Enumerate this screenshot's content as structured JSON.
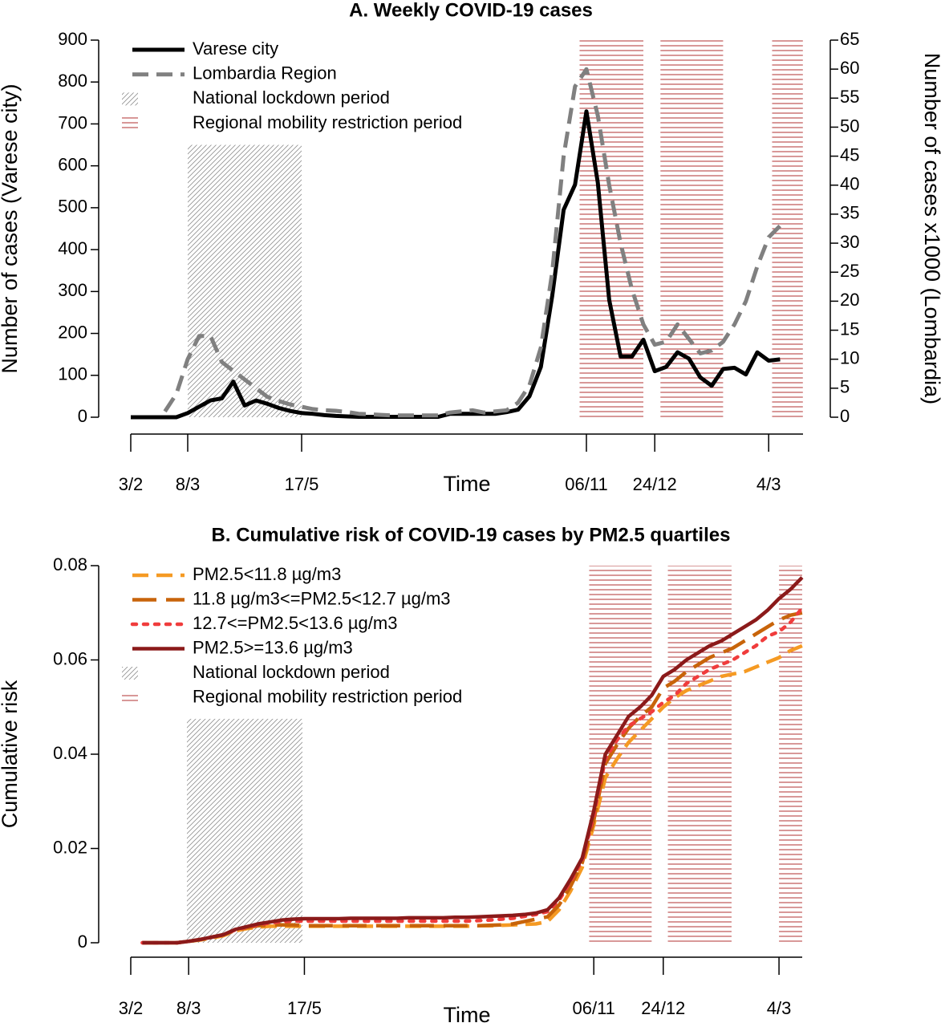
{
  "chart_data": [
    {
      "type": "line",
      "title": "A. Weekly COVID-19 cases",
      "x_label": "Time",
      "y_label": "Number of cases (Varese city)",
      "y2_label": "Number of cases x1000 (Lombardia)",
      "categories": [
        "3/2",
        null,
        null,
        null,
        null,
        "8/3",
        null,
        null,
        null,
        null,
        null,
        null,
        null,
        null,
        null,
        "17/5",
        null,
        null,
        null,
        null,
        null,
        null,
        null,
        null,
        null,
        null,
        null,
        null,
        null,
        null,
        null,
        null,
        null,
        null,
        null,
        null,
        null,
        null,
        null,
        null,
        "06/11",
        null,
        null,
        null,
        null,
        null,
        "24/12",
        null,
        null,
        null,
        null,
        null,
        null,
        null,
        null,
        null,
        "4/3",
        null
      ],
      "ylim": [
        0,
        900
      ],
      "yticks": [
        0,
        100,
        200,
        300,
        400,
        500,
        600,
        700,
        800,
        900
      ],
      "y2lim": [
        0,
        65
      ],
      "y2ticks": [
        0,
        5,
        10,
        15,
        20,
        25,
        30,
        35,
        40,
        45,
        50,
        55,
        60,
        65
      ],
      "series": [
        {
          "name": "Varese city",
          "color": "#000000",
          "style": "solid",
          "values": [
            0,
            0,
            0,
            0,
            0,
            10,
            25,
            40,
            45,
            85,
            28,
            40,
            32,
            22,
            15,
            10,
            8,
            5,
            3,
            2,
            1,
            1,
            1,
            1,
            1,
            1,
            1,
            1,
            8,
            8,
            8,
            8,
            8,
            12,
            18,
            50,
            120,
            290,
            495,
            555,
            730,
            560,
            280,
            145,
            145,
            185,
            110,
            120,
            155,
            140,
            95,
            75,
            115,
            118,
            102,
            155,
            135,
            138
          ]
        },
        {
          "name": "Lombardia Region",
          "color": "#808080",
          "style": "dashed",
          "axis": "y2",
          "values": [
            null,
            null,
            null,
            1,
            4,
            10,
            14,
            14,
            9.5,
            8,
            6.5,
            5,
            3.5,
            2.8,
            2.2,
            1.8,
            1.4,
            1.2,
            1.1,
            0.9,
            0.6,
            0.5,
            0.4,
            0.3,
            0.3,
            0.3,
            0.3,
            0.3,
            0.8,
            1,
            1.2,
            0.8,
            1,
            1.2,
            2.5,
            5.5,
            12,
            25,
            45,
            57,
            60,
            52,
            40,
            30,
            22,
            16,
            12.5,
            13,
            16,
            13.5,
            11,
            11.5,
            13,
            16,
            20,
            26,
            31,
            33
          ]
        }
      ],
      "periods": [
        {
          "name": "National lockdown period",
          "color": "#909090",
          "pattern": "diagonal",
          "ranges": [
            [
              5,
              15
            ]
          ],
          "top": 650
        },
        {
          "name": "Regional mobility restriction period",
          "color": "#b03030",
          "pattern": "horizontal",
          "ranges": [
            [
              39.4,
              45
            ],
            [
              46.5,
              52
            ],
            [
              56.3,
              59
            ]
          ]
        }
      ]
    },
    {
      "type": "line",
      "title": "B. Cumulative risk of COVID-19 cases by PM2.5 quartiles",
      "x_label": "Time",
      "y_label": "Cumulative risk",
      "categories": [
        "3/2",
        null,
        null,
        null,
        null,
        "8/3",
        null,
        null,
        null,
        null,
        null,
        null,
        null,
        null,
        null,
        "17/5",
        null,
        null,
        null,
        null,
        null,
        null,
        null,
        null,
        null,
        null,
        null,
        null,
        null,
        null,
        null,
        null,
        null,
        null,
        null,
        null,
        null,
        null,
        null,
        null,
        "06/11",
        null,
        null,
        null,
        null,
        null,
        "24/12",
        null,
        null,
        null,
        null,
        null,
        null,
        null,
        null,
        null,
        "4/3",
        null,
        null
      ],
      "ylim": [
        0,
        0.08
      ],
      "yticks": [
        0,
        0.02,
        0.04,
        0.06,
        0.08
      ],
      "series": [
        {
          "name": "PM2.5<11.8 µg/m3",
          "color": "#f59a23",
          "style": "dashed",
          "values": [
            null,
            0,
            0,
            0,
            0,
            0.0003,
            0.0006,
            0.001,
            0.0015,
            0.0025,
            0.003,
            0.0033,
            0.0035,
            0.0035,
            0.0035,
            0.0035,
            0.0035,
            0.0035,
            0.0035,
            0.0035,
            0.0035,
            0.0035,
            0.0035,
            0.0035,
            0.0035,
            0.0035,
            0.0035,
            0.0035,
            0.0035,
            0.0035,
            0.0036,
            0.0036,
            0.0037,
            0.0038,
            0.0039,
            0.004,
            0.0045,
            0.007,
            0.011,
            0.016,
            0.025,
            0.035,
            0.039,
            0.0425,
            0.045,
            0.0475,
            0.05,
            0.052,
            0.0535,
            0.0545,
            0.0555,
            0.0565,
            0.057,
            0.0575,
            0.0585,
            0.0595,
            0.0605,
            0.062,
            0.063
          ]
        },
        {
          "name": "11.8 µg/m3<=PM2.5<12.7 µg/m3",
          "color": "#c8640a",
          "style": "longdash",
          "values": [
            null,
            0,
            0,
            0,
            0,
            0.0003,
            0.0007,
            0.0012,
            0.0017,
            0.0026,
            0.0032,
            0.0036,
            0.0038,
            0.0038,
            0.0038,
            0.0036,
            0.0036,
            0.0036,
            0.0036,
            0.0036,
            0.0036,
            0.0036,
            0.0036,
            0.0036,
            0.0036,
            0.0036,
            0.0036,
            0.0036,
            0.0036,
            0.0036,
            0.0036,
            0.0037,
            0.0038,
            0.004,
            0.0045,
            0.005,
            0.0055,
            0.008,
            0.012,
            0.017,
            0.026,
            0.038,
            0.042,
            0.0455,
            0.048,
            0.05,
            0.054,
            0.0555,
            0.0575,
            0.059,
            0.0605,
            0.0615,
            0.0625,
            0.064,
            0.0655,
            0.067,
            0.0685,
            0.0695,
            0.07
          ]
        },
        {
          "name": "12.7<=PM2.5<13.6 µg/m3",
          "color": "#f03c3c",
          "style": "dotted",
          "values": [
            null,
            0,
            0,
            0,
            0,
            0.0003,
            0.0007,
            0.0012,
            0.0017,
            0.0027,
            0.0033,
            0.0038,
            0.0042,
            0.0045,
            0.0046,
            0.0046,
            0.0046,
            0.0046,
            0.0046,
            0.0046,
            0.0046,
            0.0046,
            0.0046,
            0.0046,
            0.0046,
            0.0046,
            0.0046,
            0.0046,
            0.0046,
            0.0046,
            0.0047,
            0.0048,
            0.005,
            0.0052,
            0.0056,
            0.006,
            0.0066,
            0.009,
            0.013,
            0.0175,
            0.027,
            0.039,
            0.043,
            0.046,
            0.0475,
            0.049,
            0.051,
            0.0525,
            0.055,
            0.0565,
            0.058,
            0.059,
            0.06,
            0.0615,
            0.063,
            0.065,
            0.066,
            0.068,
            0.071
          ]
        },
        {
          "name": "PM2.5>=13.6 µg/m3",
          "color": "#8b1a1a",
          "style": "solid",
          "values": [
            null,
            0,
            0,
            0,
            0,
            0.0003,
            0.0007,
            0.0012,
            0.0017,
            0.0028,
            0.0034,
            0.004,
            0.0044,
            0.0048,
            0.005,
            0.0051,
            0.0051,
            0.0051,
            0.0051,
            0.0052,
            0.0052,
            0.0052,
            0.0052,
            0.0052,
            0.0053,
            0.0053,
            0.0053,
            0.0053,
            0.0054,
            0.0054,
            0.0055,
            0.0056,
            0.0057,
            0.0058,
            0.006,
            0.0063,
            0.007,
            0.0095,
            0.0135,
            0.018,
            0.028,
            0.04,
            0.044,
            0.048,
            0.05,
            0.0525,
            0.0565,
            0.058,
            0.06,
            0.0615,
            0.063,
            0.064,
            0.0655,
            0.067,
            0.0685,
            0.0705,
            0.073,
            0.075,
            0.0775
          ]
        }
      ],
      "periods": [
        {
          "name": "National lockdown period",
          "color": "#909090",
          "pattern": "diagonal",
          "ranges": [
            [
              4.85,
              14.83
            ]
          ],
          "top": 0.0475
        },
        {
          "name": "Regional mobility restriction period",
          "color": "#b03030",
          "pattern": "horizontal",
          "ranges": [
            [
              39.6,
              45
            ],
            [
              46.4,
              51.9
            ],
            [
              56,
              58
            ]
          ]
        }
      ]
    }
  ]
}
